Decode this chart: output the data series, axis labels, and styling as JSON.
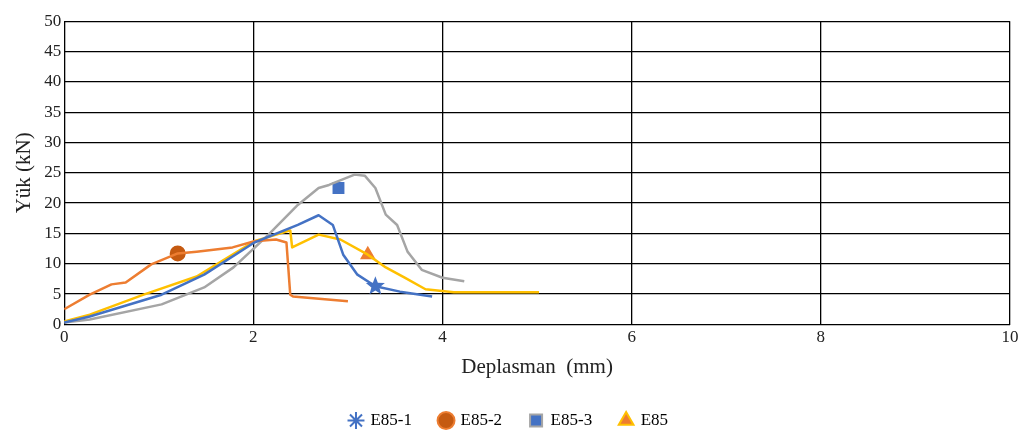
{
  "chart_data": {
    "type": "line",
    "xlabel": "Deplasman  (mm)",
    "ylabel": "Yük (kN)",
    "xlim": [
      0,
      10
    ],
    "xticks": [
      0,
      2,
      4,
      6,
      8,
      10
    ],
    "ylim": [
      0,
      50
    ],
    "yticks": [
      0,
      5,
      10,
      15,
      20,
      25,
      30,
      35,
      40,
      45,
      50
    ],
    "grid": true,
    "legend": "bottom",
    "line_style": "solid",
    "series": [
      {
        "name": "E85-1",
        "color": "#4472c4",
        "x": [
          0,
          0.27,
          1.03,
          1.48,
          2.01,
          2.47,
          2.69,
          2.84,
          2.95,
          3.1,
          3.29,
          3.55,
          3.89
        ],
        "values": [
          0.3,
          1.3,
          4.9,
          8.2,
          13.5,
          16.4,
          18,
          16.4,
          11.5,
          8.2,
          6.3,
          5.4,
          4.6
        ]
      },
      {
        "type": "scatter",
        "color": "#4472c4",
        "marker": "star",
        "x": [
          3.29
        ],
        "values": [
          6.3
        ]
      },
      {
        "name": "E85-2",
        "color": "#ed7d31",
        "x": [
          0,
          0.27,
          0.5,
          0.65,
          0.92,
          1.2,
          1.4,
          1.78,
          2.01,
          2.24,
          2.35,
          2.39,
          2.42,
          3.0
        ],
        "values": [
          2.5,
          4.9,
          6.6,
          6.9,
          9.9,
          11.7,
          12,
          12.7,
          13.7,
          14,
          13.5,
          4.9,
          4.6,
          3.8
        ]
      },
      {
        "type": "scatter",
        "color": "#c55a11",
        "marker": "circle",
        "x": [
          1.2
        ],
        "values": [
          11.7
        ]
      },
      {
        "name": "E85-3",
        "color": "#a5a5a5",
        "x": [
          0,
          0.27,
          1.03,
          1.48,
          1.79,
          2.16,
          2.47,
          2.69,
          2.8,
          3.07,
          3.18,
          3.29,
          3.4,
          3.52,
          3.63,
          3.78,
          4.0,
          4.23
        ],
        "values": [
          0.3,
          0.8,
          3.3,
          6.1,
          9.4,
          14.8,
          19.7,
          22.5,
          23,
          24.7,
          24.5,
          22.5,
          18.1,
          16.4,
          12,
          9,
          7.7,
          7.1
        ]
      },
      {
        "type": "scatter",
        "color": "#4472c4",
        "marker": "square",
        "x": [
          2.9
        ],
        "values": [
          22.5
        ]
      },
      {
        "name": "E85",
        "color": "#ffc000",
        "x": [
          0,
          0.27,
          0.84,
          1.4,
          2.01,
          2.39,
          2.41,
          2.69,
          2.92,
          3.21,
          3.4,
          3.6,
          3.82,
          4.12,
          5.02
        ],
        "values": [
          0.5,
          1.6,
          4.9,
          7.9,
          13.7,
          15.5,
          12.7,
          14.8,
          14,
          11.5,
          9.4,
          7.7,
          5.8,
          5.3,
          5.3
        ]
      },
      {
        "type": "scatter",
        "color": "#ed7d31",
        "marker": "triangle",
        "x": [
          3.21
        ],
        "values": [
          11.5
        ]
      }
    ]
  }
}
